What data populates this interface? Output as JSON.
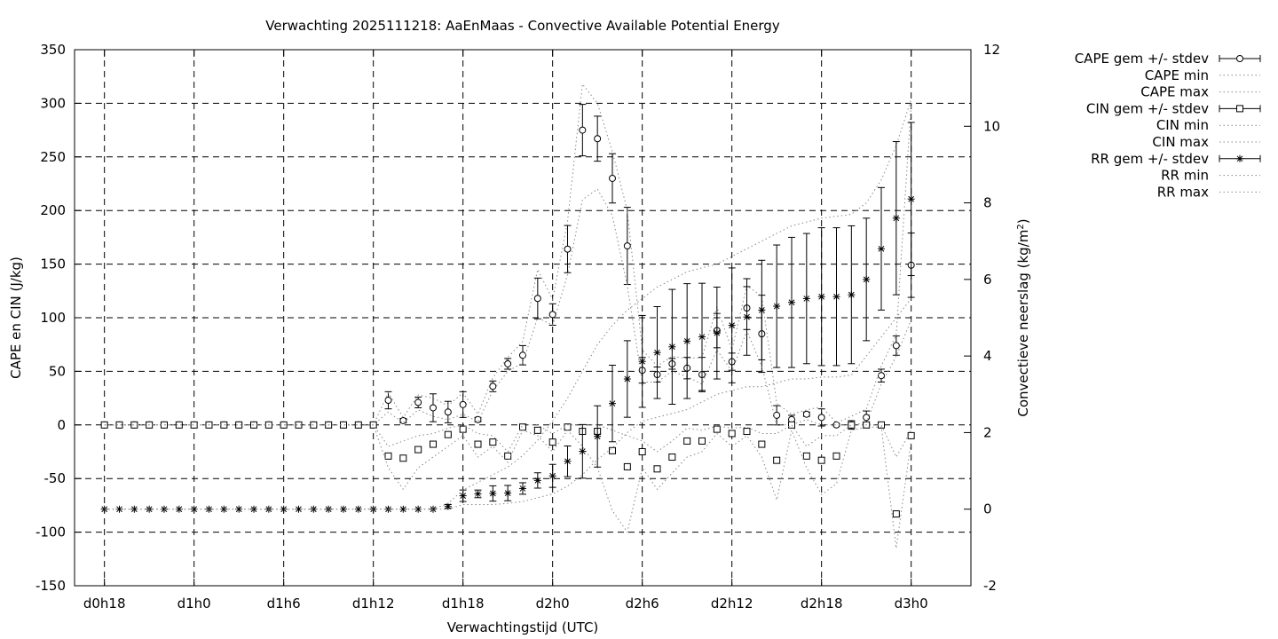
{
  "chart_data": {
    "type": "line",
    "title": "Verwachting 2025111218: AaEnMaas - Convective Available Potential Energy",
    "xlabel": "Verwachtingstijd (UTC)",
    "ylabel": "CAPE en CIN (J/kg)",
    "y2label_main": "Convectieve neerslag (kg/m",
    "y2label_sup": "2",
    "y2label_end": ")",
    "x_range_hours": [
      -2,
      58
    ],
    "ylim": [
      -150,
      350
    ],
    "y2lim": [
      -2,
      12
    ],
    "grid": true,
    "legend_position": "outside-right",
    "x_ticks": [
      {
        "h": 0,
        "label": "d0h18"
      },
      {
        "h": 6,
        "label": "d1h0"
      },
      {
        "h": 12,
        "label": "d1h6"
      },
      {
        "h": 18,
        "label": "d1h12"
      },
      {
        "h": 24,
        "label": "d1h18"
      },
      {
        "h": 30,
        "label": "d2h0"
      },
      {
        "h": 36,
        "label": "d2h6"
      },
      {
        "h": 42,
        "label": "d2h12"
      },
      {
        "h": 48,
        "label": "d2h18"
      },
      {
        "h": 54,
        "label": "d3h0"
      }
    ],
    "y_ticks": [
      "-150",
      "-100",
      "-50",
      "0",
      "50",
      "100",
      "150",
      "200",
      "250",
      "300",
      "350"
    ],
    "y2_ticks": [
      "-2",
      "0",
      "2",
      "4",
      "6",
      "8",
      "10",
      "12"
    ],
    "legend": [
      "CAPE gem +/- stdev",
      "CAPE min",
      "CAPE max",
      "CIN gem +/- stdev",
      "CIN min",
      "CIN max",
      "RR gem +/- stdev",
      "RR min",
      "RR max"
    ],
    "hours": [
      0,
      1,
      2,
      3,
      4,
      5,
      6,
      7,
      8,
      9,
      10,
      11,
      12,
      13,
      14,
      15,
      16,
      17,
      18,
      19,
      20,
      21,
      22,
      23,
      24,
      25,
      26,
      27,
      28,
      29,
      30,
      31,
      32,
      33,
      34,
      35,
      36,
      37,
      38,
      39,
      40,
      41,
      42,
      43,
      44,
      45,
      46,
      47,
      48,
      49,
      50,
      51,
      52,
      53,
      54
    ],
    "series": [
      {
        "name": "CAPE gem +/- stdev",
        "axis": "y",
        "marker": "circle",
        "mean": [
          0,
          0,
          0,
          0,
          0,
          0,
          0,
          0,
          0,
          0,
          0,
          0,
          0,
          0,
          0,
          0,
          0,
          0,
          0,
          23,
          4,
          21,
          16,
          12,
          19,
          5,
          36,
          57,
          65,
          118,
          103,
          164,
          275,
          267,
          230,
          167,
          51,
          47,
          57,
          53,
          47,
          88,
          59,
          109,
          85,
          9,
          5,
          10,
          7,
          0,
          0,
          7,
          46,
          74,
          149
        ],
        "stdev": [
          0,
          0,
          0,
          0,
          0,
          0,
          0,
          0,
          0,
          0,
          0,
          0,
          0,
          0,
          0,
          0,
          0,
          0,
          0,
          8,
          2,
          5,
          13,
          10,
          12,
          2,
          5,
          5,
          9,
          19,
          10,
          22,
          24,
          21,
          23,
          36,
          12,
          7,
          5,
          10,
          16,
          16,
          8,
          20,
          36,
          9,
          4,
          2,
          8,
          1,
          4,
          6,
          6,
          9,
          30
        ]
      },
      {
        "name": "CAPE min",
        "axis": "y",
        "values": [
          0,
          0,
          0,
          0,
          0,
          0,
          0,
          0,
          0,
          0,
          0,
          0,
          0,
          0,
          0,
          0,
          0,
          0,
          0,
          12,
          2,
          14,
          8,
          5,
          10,
          3,
          32,
          50,
          58,
          100,
          93,
          140,
          210,
          220,
          195,
          130,
          40,
          40,
          50,
          45,
          38,
          70,
          50,
          88,
          55,
          0,
          0,
          5,
          0,
          0,
          0,
          2,
          38,
          64,
          98
        ]
      },
      {
        "name": "CAPE max",
        "axis": "y",
        "values": [
          0,
          0,
          0,
          0,
          0,
          0,
          0,
          0,
          0,
          0,
          0,
          0,
          0,
          0,
          0,
          0,
          0,
          0,
          0,
          30,
          7,
          28,
          25,
          18,
          30,
          10,
          44,
          63,
          78,
          145,
          117,
          190,
          318,
          300,
          255,
          200,
          70,
          55,
          64,
          62,
          63,
          110,
          70,
          130,
          120,
          20,
          10,
          14,
          17,
          2,
          8,
          15,
          55,
          84,
          300
        ]
      },
      {
        "name": "CIN gem +/- stdev",
        "axis": "y",
        "marker": "square",
        "mean": [
          0,
          0,
          0,
          0,
          0,
          0,
          0,
          0,
          0,
          0,
          0,
          0,
          0,
          0,
          0,
          0,
          0,
          0,
          0,
          -29,
          -31,
          -23,
          -18,
          -9,
          -4,
          -18,
          -16,
          -29,
          -2,
          -5,
          -16,
          -2,
          -6,
          -6,
          -24,
          -39,
          -25,
          -41,
          -30,
          -15,
          -15,
          -4,
          -8,
          -6,
          -18,
          -33,
          0,
          -29,
          -33,
          -29,
          0,
          0,
          0,
          -83,
          -10
        ]
      },
      {
        "name": "CIN min",
        "axis": "y",
        "values": [
          0,
          0,
          0,
          0,
          0,
          0,
          0,
          0,
          0,
          0,
          0,
          0,
          0,
          0,
          0,
          0,
          0,
          0,
          0,
          -40,
          -60,
          -40,
          -30,
          -20,
          -10,
          -30,
          -20,
          -35,
          -5,
          -10,
          -25,
          -5,
          -20,
          -40,
          -80,
          -100,
          -40,
          -60,
          -45,
          -30,
          -25,
          -8,
          -20,
          -10,
          -30,
          -70,
          -5,
          -40,
          -65,
          -55,
          -5,
          -2,
          -2,
          -115,
          -15
        ]
      },
      {
        "name": "CIN max",
        "axis": "y",
        "values": [
          0,
          0,
          0,
          0,
          0,
          0,
          0,
          0,
          0,
          0,
          0,
          0,
          0,
          0,
          0,
          0,
          0,
          0,
          0,
          -20,
          -15,
          -10,
          -8,
          -3,
          0,
          -8,
          -10,
          -25,
          0,
          0,
          -8,
          0,
          0,
          0,
          -5,
          -10,
          -15,
          -25,
          -15,
          -3,
          -5,
          -1,
          -3,
          -2,
          -8,
          -8,
          0,
          -20,
          -10,
          -10,
          0,
          0,
          0,
          -30,
          -5
        ]
      },
      {
        "name": "RR gem +/- stdev",
        "axis": "y2",
        "marker": "star",
        "mean": [
          0,
          0,
          0,
          0,
          0,
          0,
          0,
          0,
          0,
          0,
          0,
          0,
          0,
          0,
          0,
          0,
          0,
          0,
          0,
          0,
          0,
          0,
          0,
          0.07,
          0.35,
          0.4,
          0.41,
          0.42,
          0.54,
          0.75,
          0.87,
          1.25,
          1.51,
          1.9,
          2.76,
          3.4,
          3.86,
          4.09,
          4.24,
          4.39,
          4.5,
          4.6,
          4.8,
          5.02,
          5.2,
          5.3,
          5.4,
          5.5,
          5.55,
          5.55,
          5.6,
          6.0,
          6.8,
          7.6,
          8.1
        ],
        "stdev": [
          0,
          0,
          0,
          0,
          0,
          0,
          0,
          0,
          0,
          0,
          0,
          0,
          0,
          0,
          0,
          0,
          0,
          0,
          0,
          0,
          0,
          0,
          0,
          0.05,
          0.15,
          0.1,
          0.2,
          0.2,
          0.15,
          0.2,
          0.3,
          0.4,
          0.7,
          0.8,
          1.0,
          1.0,
          1.2,
          1.2,
          1.5,
          1.5,
          1.4,
          1.2,
          1.5,
          1.0,
          1.3,
          1.6,
          1.7,
          1.7,
          1.8,
          1.8,
          1.8,
          1.6,
          1.6,
          2.0,
          2.0
        ]
      },
      {
        "name": "RR min",
        "axis": "y2",
        "values": [
          0,
          0,
          0,
          0,
          0,
          0,
          0,
          0,
          0,
          0,
          0,
          0,
          0,
          0,
          0,
          0,
          0,
          0,
          0,
          0,
          0,
          0,
          0,
          0,
          0.12,
          0.12,
          0.12,
          0.15,
          0.2,
          0.3,
          0.4,
          0.6,
          0.9,
          1.3,
          1.6,
          2.0,
          2.3,
          2.4,
          2.5,
          2.6,
          2.8,
          3.0,
          3.1,
          3.2,
          3.2,
          3.3,
          3.4,
          3.4,
          3.45,
          3.45,
          3.5,
          4.0,
          4.5,
          5.0,
          5.5
        ]
      },
      {
        "name": "RR max",
        "axis": "y2",
        "values": [
          0,
          0,
          0,
          0,
          0,
          0,
          0,
          0,
          0,
          0,
          0,
          0,
          0,
          0,
          0,
          0,
          0,
          0,
          0,
          0,
          0,
          0,
          0,
          0.15,
          0.5,
          0.7,
          0.9,
          1.1,
          1.4,
          1.8,
          2.3,
          2.9,
          3.6,
          4.3,
          4.8,
          5.2,
          5.5,
          5.8,
          6.0,
          6.2,
          6.3,
          6.4,
          6.6,
          6.8,
          7.0,
          7.2,
          7.4,
          7.5,
          7.6,
          7.65,
          7.7,
          8.0,
          8.6,
          9.5,
          10.7
        ]
      }
    ]
  }
}
